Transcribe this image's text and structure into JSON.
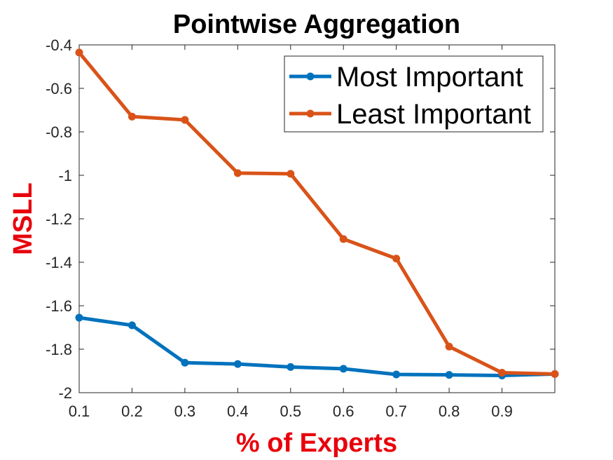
{
  "chart_data": {
    "type": "line",
    "title": "Pointwise Aggregation",
    "xlabel": "% of Experts",
    "ylabel": "MSLL",
    "xlim": [
      0.1,
      1.0
    ],
    "ylim": [
      -2.0,
      -0.4
    ],
    "xticks": [
      0.1,
      0.2,
      0.3,
      0.4,
      0.5,
      0.6,
      0.7,
      0.8,
      0.9
    ],
    "xtick_labels": [
      "0.1",
      "0.2",
      "0.3",
      "0.4",
      "0.5",
      "0.6",
      "0.7",
      "0.8",
      "0.9"
    ],
    "yticks": [
      -2.0,
      -1.8,
      -1.6,
      -1.4,
      -1.2,
      -1.0,
      -0.8,
      -0.6,
      -0.4
    ],
    "ytick_labels": [
      "-2",
      "-1.8",
      "-1.6",
      "-1.4",
      "-1.2",
      "-1",
      "-0.8",
      "-0.6",
      "-0.4"
    ],
    "x": [
      0.1,
      0.2,
      0.3,
      0.4,
      0.5,
      0.6,
      0.7,
      0.8,
      0.9,
      1.0
    ],
    "series": [
      {
        "name": "Most Important",
        "color": "#0072BD",
        "values": [
          -1.655,
          -1.69,
          -1.862,
          -1.868,
          -1.882,
          -1.89,
          -1.916,
          -1.918,
          -1.921,
          -1.914
        ]
      },
      {
        "name": "Least Important",
        "color": "#D95319",
        "values": [
          -0.435,
          -0.73,
          -0.745,
          -0.99,
          -0.993,
          -1.293,
          -1.383,
          -1.788,
          -1.908,
          -1.914
        ]
      }
    ],
    "legend_position": "top-right",
    "axis_label_color": "#E8000B"
  }
}
